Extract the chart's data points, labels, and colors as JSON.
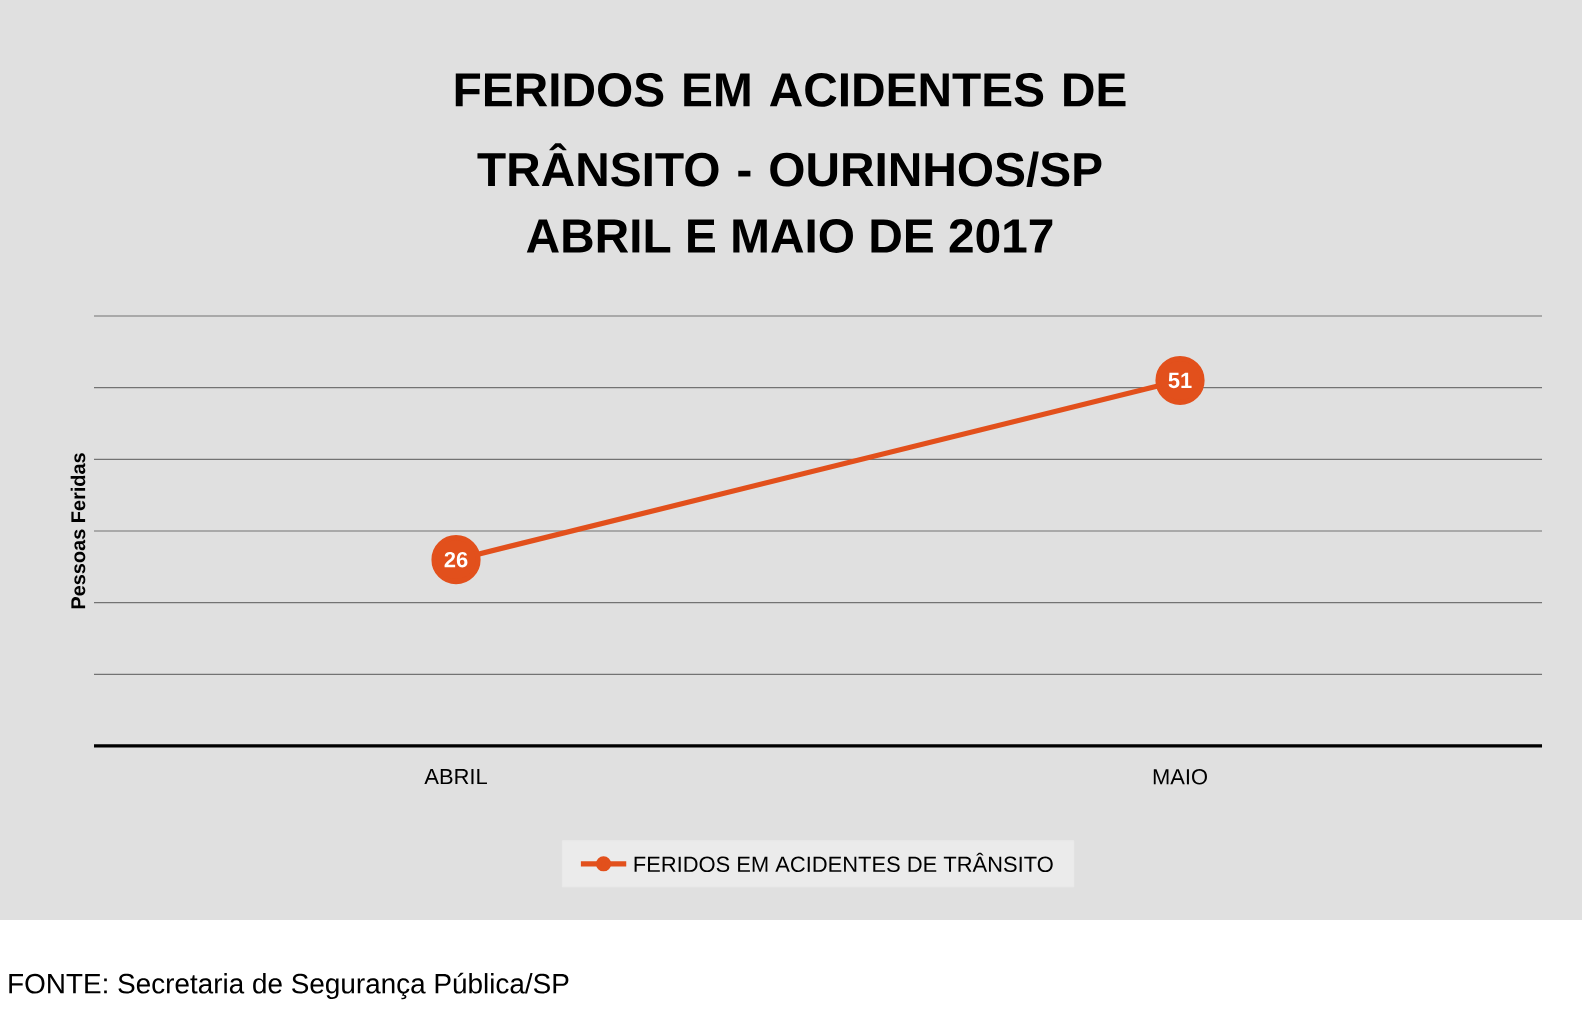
{
  "chart_data": {
    "type": "line",
    "title": "FERIDOS EM ACIDENTES DE TRÂNSITO - OURINHOS/SP",
    "subtitle": "ABRIL E MAIO DE 2017",
    "ylabel": "Pessoas Feridas",
    "categories": [
      "ABRIL",
      "MAIO"
    ],
    "series": [
      {
        "name": "FERIDOS EM ACIDENTES DE TRÂNSITO",
        "color": "#e2501c",
        "values": [
          26,
          51
        ]
      }
    ],
    "ylim": [
      0,
      60
    ],
    "yticks": [
      {
        "value": 0,
        "label": null
      },
      {
        "value": 10,
        "label": null
      },
      {
        "value": 20,
        "label": null
      },
      {
        "value": 30,
        "label": null
      },
      {
        "value": 40,
        "label": null
      },
      {
        "value": 50,
        "label": null
      },
      {
        "value": 60,
        "label": null
      }
    ],
    "grid": "y",
    "legend": "bottom",
    "marker": "circle",
    "data_labels": true,
    "annotations": [
      "FONTE: Secretaria de Segurança Pública/SP"
    ]
  }
}
